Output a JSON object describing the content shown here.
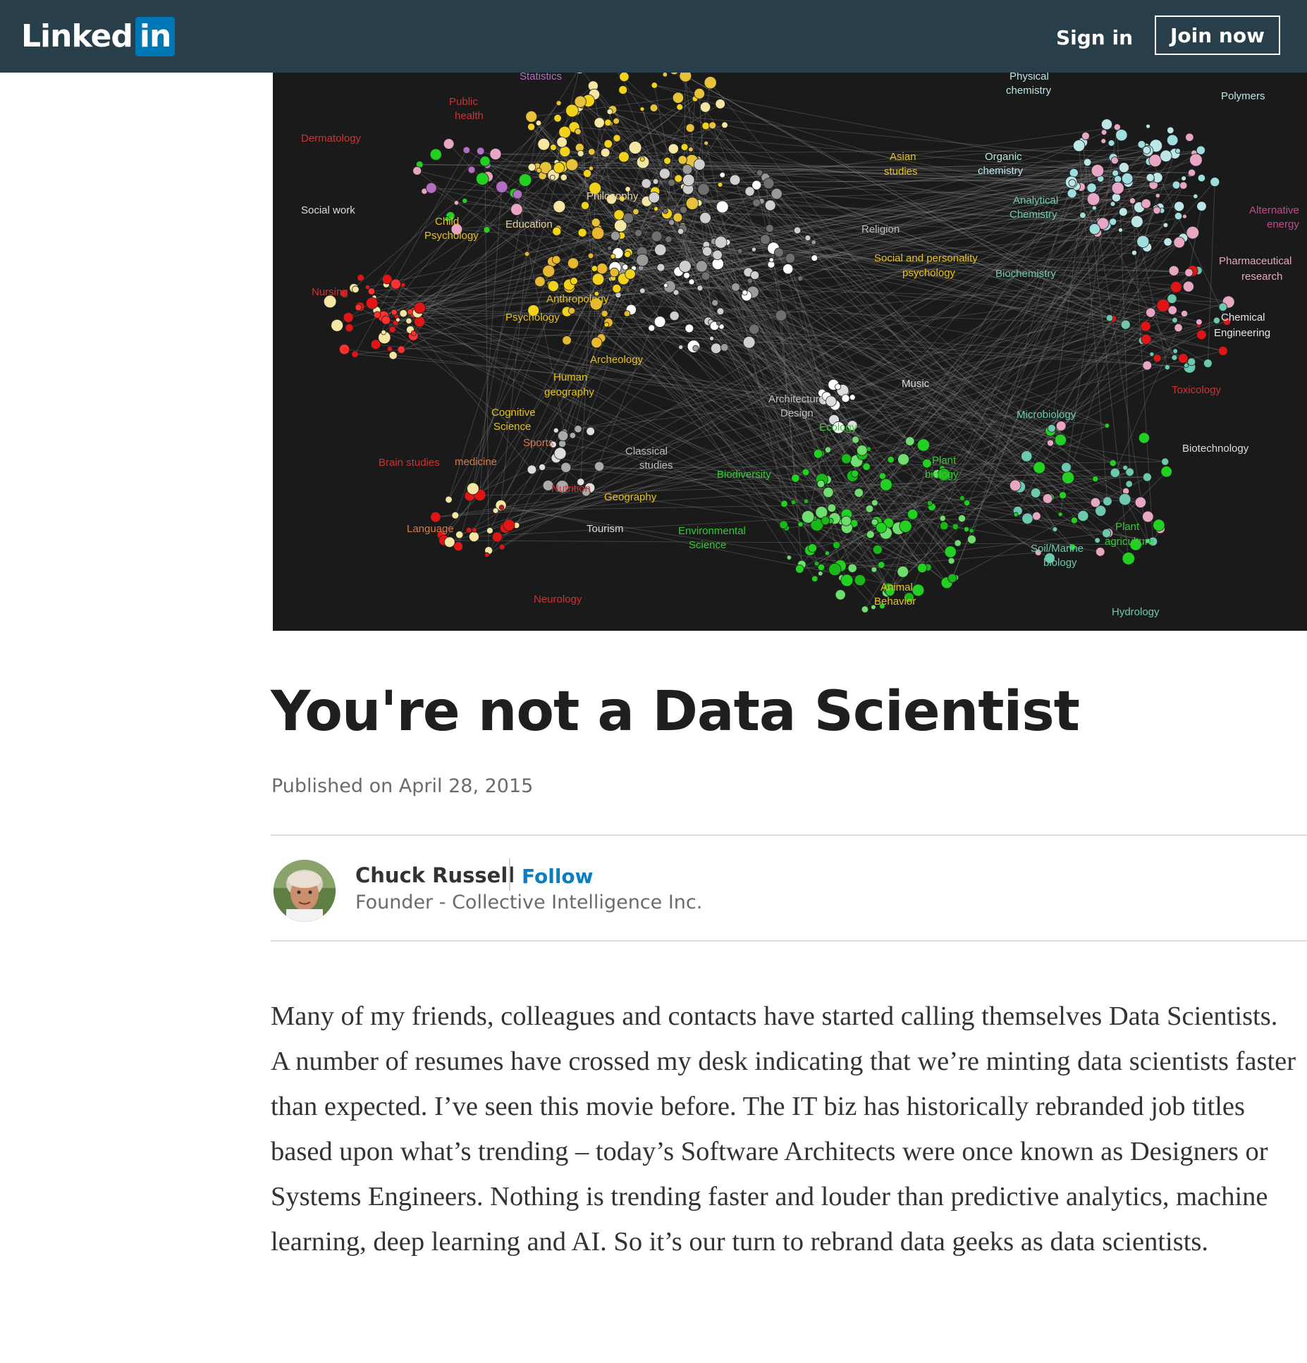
{
  "header": {
    "logo_text": "Linked",
    "logo_badge": "in",
    "signin_label": "Sign in",
    "join_label": "Join now",
    "background": "#283e4a",
    "brand_blue": "#0077b5"
  },
  "hero": {
    "labels": [
      {
        "text": "Statistics",
        "color": "#b36fc4"
      },
      {
        "text": "Public",
        "color": "#cc3333"
      },
      {
        "text": "health",
        "color": "#cc3333"
      },
      {
        "text": "Dermatology",
        "color": "#cc3333"
      },
      {
        "text": "Social work",
        "color": "#dddddd"
      },
      {
        "text": "Child",
        "color": "#e6c21f"
      },
      {
        "text": "Psychology",
        "color": "#e6c21f"
      },
      {
        "text": "Education",
        "color": "#e6d49a"
      },
      {
        "text": "Philosophy",
        "color": "#e6d49a"
      },
      {
        "text": "Nursing",
        "color": "#cc3333"
      },
      {
        "text": "Anthropology",
        "color": "#e6c21f"
      },
      {
        "text": "Psychology",
        "color": "#e6c21f"
      },
      {
        "text": "Archeology",
        "color": "#e6c21f"
      },
      {
        "text": "Human",
        "color": "#e6c21f"
      },
      {
        "text": "geography",
        "color": "#e6c21f"
      },
      {
        "text": "Cognitive",
        "color": "#e6c21f"
      },
      {
        "text": "Science",
        "color": "#e6c21f"
      },
      {
        "text": "Sports",
        "color": "#d47a4a"
      },
      {
        "text": "medicine",
        "color": "#d47a4a"
      },
      {
        "text": "Brain studies",
        "color": "#cc3333"
      },
      {
        "text": "Nutrition",
        "color": "#cc3333"
      },
      {
        "text": "Geography",
        "color": "#e6c21f"
      },
      {
        "text": "Language",
        "color": "#d47a4a"
      },
      {
        "text": "Tourism",
        "color": "#dddddd"
      },
      {
        "text": "Neurology",
        "color": "#cc3333"
      },
      {
        "text": "Classical",
        "color": "#bbbbbb"
      },
      {
        "text": "studies",
        "color": "#bbbbbb"
      },
      {
        "text": "Asian",
        "color": "#e6c21f"
      },
      {
        "text": "studies",
        "color": "#e6c21f"
      },
      {
        "text": "Religion",
        "color": "#bbbbbb"
      },
      {
        "text": "Social and personality",
        "color": "#e6c21f"
      },
      {
        "text": "psychology",
        "color": "#e6c21f"
      },
      {
        "text": "Music",
        "color": "#dddddd"
      },
      {
        "text": "Architecture",
        "color": "#bbbbbb"
      },
      {
        "text": "Design",
        "color": "#bbbbbb"
      },
      {
        "text": "Ecology",
        "color": "#33cc33"
      },
      {
        "text": "Biodiversity",
        "color": "#33cc33"
      },
      {
        "text": "Environmental",
        "color": "#33cc33"
      },
      {
        "text": "Science",
        "color": "#33cc33"
      },
      {
        "text": "Plant",
        "color": "#33cc33"
      },
      {
        "text": "biology",
        "color": "#33cc33"
      },
      {
        "text": "Animal",
        "color": "#e6c21f"
      },
      {
        "text": "Behavior",
        "color": "#e6c21f"
      },
      {
        "text": "Physical",
        "color": "#bde6e6"
      },
      {
        "text": "chemistry",
        "color": "#bde6e6"
      },
      {
        "text": "Polymers",
        "color": "#bde6e6"
      },
      {
        "text": "Organic",
        "color": "#bde6e6"
      },
      {
        "text": "chemistry",
        "color": "#bde6e6"
      },
      {
        "text": "Analytical",
        "color": "#6cc9b0"
      },
      {
        "text": "Chemistry",
        "color": "#6cc9b0"
      },
      {
        "text": "Alternative",
        "color": "#c34a8a"
      },
      {
        "text": "energy",
        "color": "#c34a8a"
      },
      {
        "text": "Pharmaceutical",
        "color": "#e6a6c4"
      },
      {
        "text": "research",
        "color": "#e6a6c4"
      },
      {
        "text": "Biochemistry",
        "color": "#6cc9b0"
      },
      {
        "text": "Chemical",
        "color": "#e6e6e6"
      },
      {
        "text": "Engineering",
        "color": "#e6e6e6"
      },
      {
        "text": "Toxicology",
        "color": "#cc3333"
      },
      {
        "text": "Microbiology",
        "color": "#6cc9b0"
      },
      {
        "text": "Biotechnology",
        "color": "#dddddd"
      },
      {
        "text": "Plant",
        "color": "#33cc33"
      },
      {
        "text": "agriculture",
        "color": "#33cc33"
      },
      {
        "text": "Soil/Marine",
        "color": "#6cc9b0"
      },
      {
        "text": "biology",
        "color": "#6cc9b0"
      },
      {
        "text": "Hydrology",
        "color": "#6cc9b0"
      }
    ]
  },
  "article": {
    "title": "You're not a Data Scientist",
    "published": "Published on April 28, 2015",
    "author": {
      "name": "Chuck Russell",
      "follow_label": "Follow",
      "headline": "Founder - Collective Intelligence Inc."
    },
    "body": "Many of my friends, colleagues and contacts have started calling themselves Data Scientists. A number of resumes have crossed my desk indicating that we’re minting data scientists faster than expected. I’ve seen this movie before. The IT biz has historically rebranded job titles based upon what’s trending – today’s Software Architects were once known as Designers or Systems Engineers. Nothing is trending faster and louder than predictive analytics, machine learning, deep learning and AI. So it’s our turn to rebrand data geeks as data scientists."
  }
}
